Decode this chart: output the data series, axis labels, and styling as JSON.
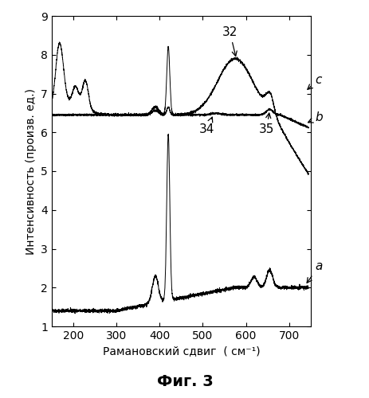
{
  "title": "",
  "xlabel": "Рамановский сдвиг  ( см⁻¹)",
  "ylabel": "Интенсивность (произв. ед.)",
  "fig_title": "Фиг. 3",
  "xlim": [
    150,
    750
  ],
  "ylim": [
    1,
    9
  ],
  "yticks": [
    1,
    2,
    3,
    4,
    5,
    6,
    7,
    8,
    9
  ],
  "xticks": [
    200,
    300,
    400,
    500,
    600,
    700
  ],
  "line_color": "#000000",
  "background_color": "#ffffff",
  "label_a": "a",
  "label_b": "b",
  "label_c": "c",
  "annotation_32": "32",
  "annotation_34": "34",
  "annotation_35": "35"
}
